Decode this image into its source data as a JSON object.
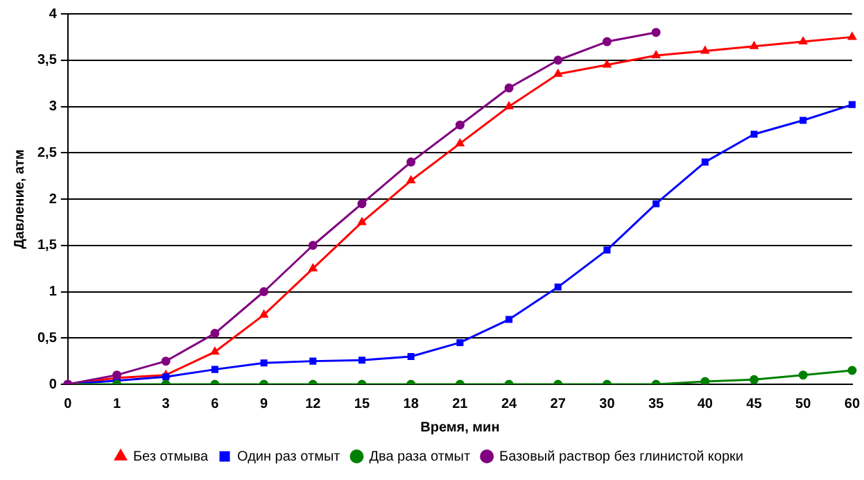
{
  "chart_data": {
    "type": "line",
    "xlabel": "Время, мин",
    "ylabel": "Давление, атм",
    "categories": [
      "0",
      "1",
      "3",
      "6",
      "9",
      "12",
      "15",
      "18",
      "21",
      "24",
      "27",
      "30",
      "35",
      "40",
      "45",
      "50",
      "60"
    ],
    "series": [
      {
        "name": "Без отмыва",
        "color": "#ff0000",
        "marker": "triangle",
        "values": [
          0,
          0.07,
          0.1,
          0.35,
          0.75,
          1.25,
          1.75,
          2.2,
          2.6,
          3.0,
          3.35,
          3.45,
          3.55,
          3.6,
          3.65,
          3.7,
          3.75
        ]
      },
      {
        "name": "Один раз отмыт",
        "color": "#0000ff",
        "marker": "square",
        "values": [
          0,
          0.04,
          0.08,
          0.16,
          0.23,
          0.25,
          0.26,
          0.3,
          0.45,
          0.7,
          1.05,
          1.45,
          1.95,
          2.4,
          2.7,
          2.85,
          3.02
        ]
      },
      {
        "name": "Два раза отмыт",
        "color": "#008000",
        "marker": "circle",
        "values": [
          0,
          0,
          0,
          0,
          0,
          0,
          0,
          0,
          0,
          0,
          0,
          0,
          0,
          0.03,
          0.05,
          0.1,
          0.15
        ]
      },
      {
        "name": "Базовый раствор без глинистой корки",
        "color": "#800080",
        "marker": "circle",
        "values": [
          0,
          0.1,
          0.25,
          0.55,
          1.0,
          1.5,
          1.95,
          2.4,
          2.8,
          3.2,
          3.5,
          3.7,
          3.8,
          null,
          null,
          null,
          null
        ]
      }
    ],
    "ylim": [
      0,
      4
    ],
    "yticks": [
      0,
      {
        "value": 0.5,
        "label": "0,5"
      },
      1,
      {
        "value": 1.5,
        "label": "1,5"
      },
      2,
      {
        "value": 2.5,
        "label": "2,5"
      },
      3,
      {
        "value": 3.5,
        "label": "3,5"
      },
      4
    ],
    "grid": "y",
    "legend": "bottom"
  }
}
